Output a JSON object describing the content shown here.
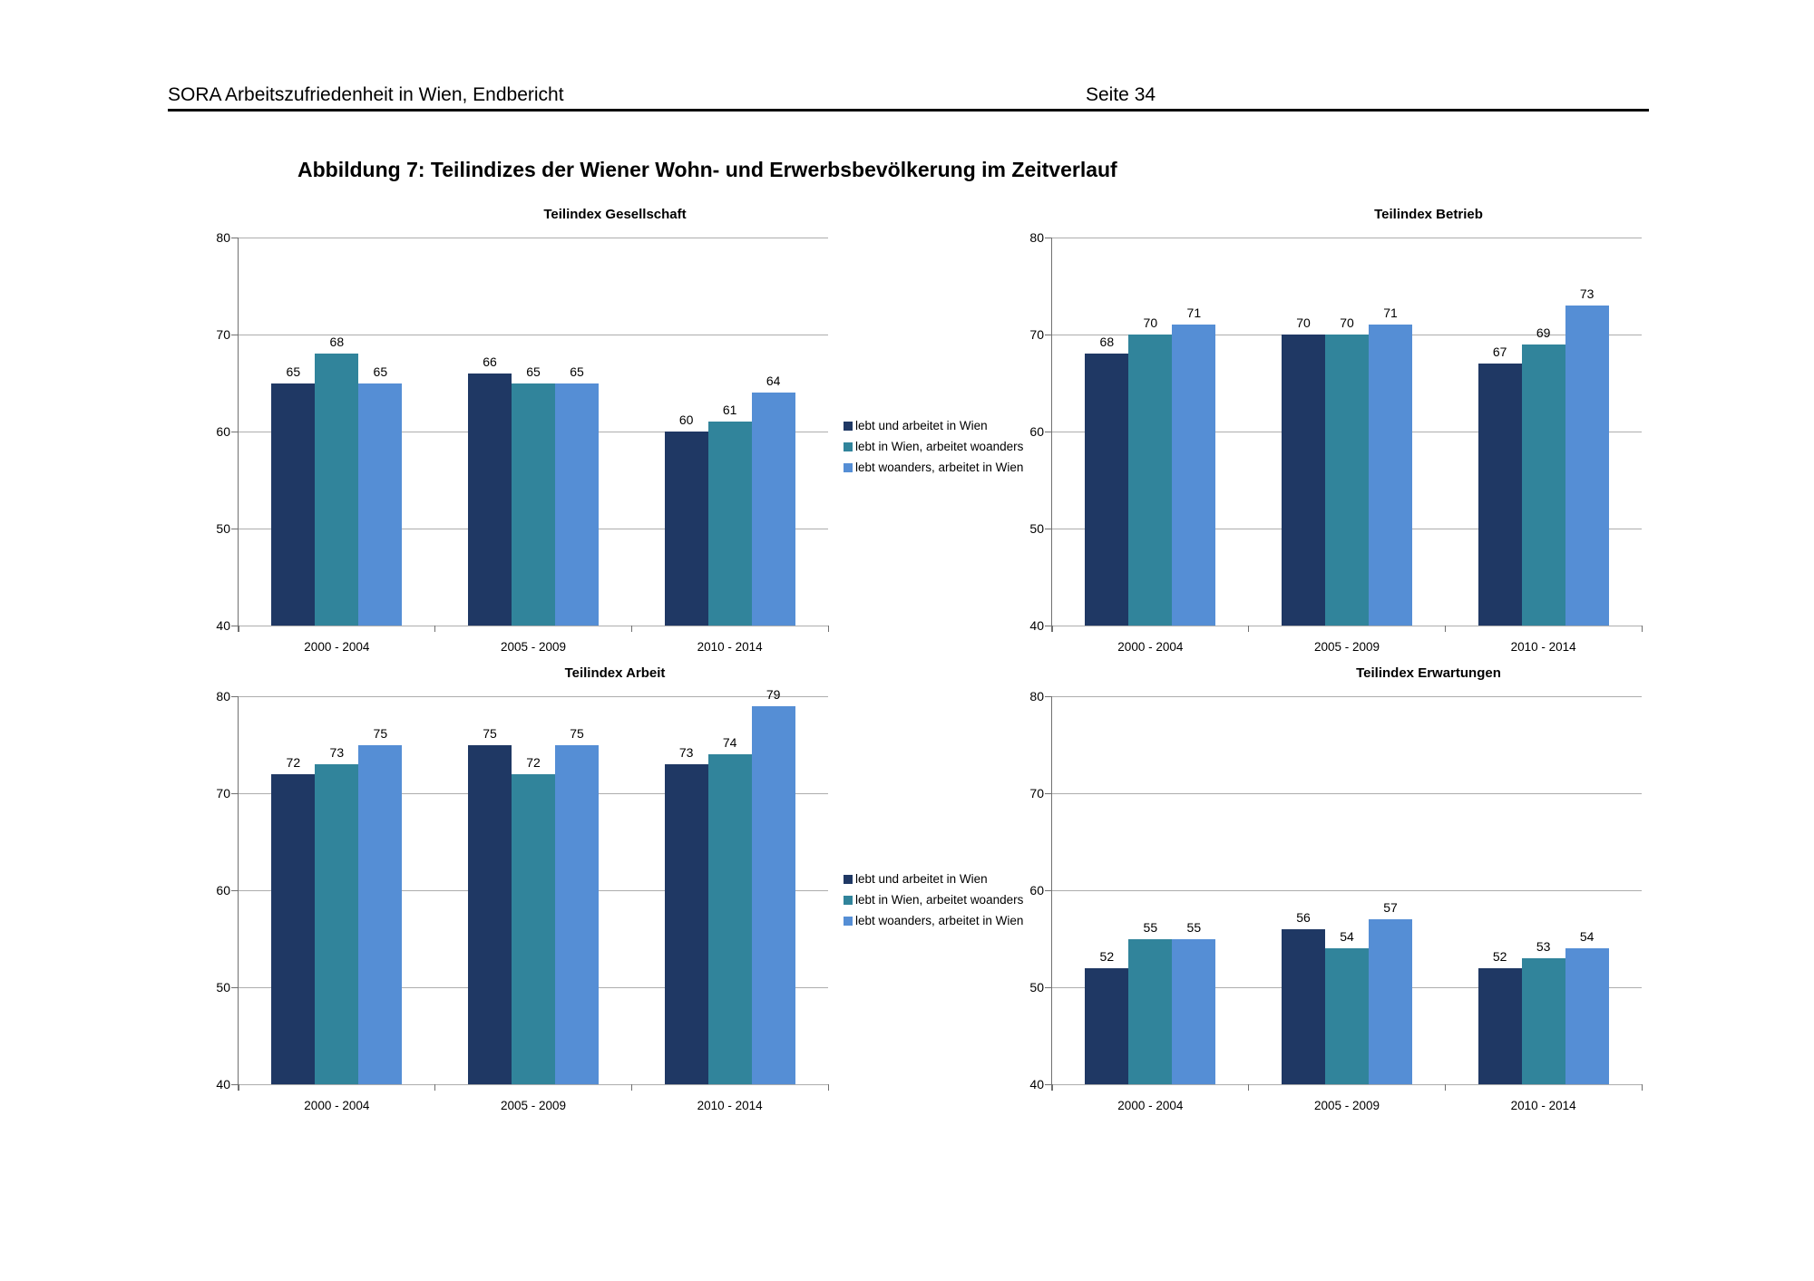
{
  "page": {
    "header_left": "SORA Arbeitszufriedenheit in Wien, Endbericht",
    "header_right": "Seite 34",
    "figure_title": "Abbildung 7: Teilindizes der Wiener Wohn- und Erwerbsbevölkerung im Zeitverlauf"
  },
  "colors": {
    "series": [
      "#1F3864",
      "#31849B",
      "#558ED5"
    ],
    "gridline": "#ADADAD",
    "axis": "#707070",
    "text": "#000000"
  },
  "legend": {
    "items": [
      "lebt und arbeitet in Wien",
      "lebt in Wien, arbeitet woanders",
      "lebt woanders, arbeitet in Wien"
    ]
  },
  "chart_data": [
    {
      "type": "bar",
      "title": "Teilindex Gesellschaft",
      "categories": [
        "2000 - 2004",
        "2005 - 2009",
        "2010 - 2014"
      ],
      "series": [
        {
          "name": "lebt und arbeitet in Wien",
          "values": [
            65,
            66,
            60
          ]
        },
        {
          "name": "lebt in Wien, arbeitet woanders",
          "values": [
            68,
            65,
            61
          ]
        },
        {
          "name": "lebt woanders, arbeitet in Wien",
          "values": [
            65,
            65,
            64
          ]
        }
      ],
      "ylim": [
        40,
        80
      ],
      "yticks": [
        80,
        70,
        60,
        50,
        40
      ],
      "grid": true,
      "legend_position": "right"
    },
    {
      "type": "bar",
      "title": "Teilindex Betrieb",
      "categories": [
        "2000 - 2004",
        "2005 - 2009",
        "2010 - 2014"
      ],
      "series": [
        {
          "name": "lebt und arbeitet in Wien",
          "values": [
            68,
            70,
            67
          ]
        },
        {
          "name": "lebt in Wien, arbeitet woanders",
          "values": [
            70,
            70,
            69
          ]
        },
        {
          "name": "lebt woanders, arbeitet in Wien",
          "values": [
            71,
            71,
            73
          ]
        }
      ],
      "ylim": [
        40,
        80
      ],
      "yticks": [
        80,
        70,
        60,
        50,
        40
      ],
      "grid": true,
      "legend_position": "none"
    },
    {
      "type": "bar",
      "title": "Teilindex Arbeit",
      "categories": [
        "2000 - 2004",
        "2005 - 2009",
        "2010 - 2014"
      ],
      "series": [
        {
          "name": "lebt und arbeitet in Wien",
          "values": [
            72,
            75,
            73
          ]
        },
        {
          "name": "lebt in Wien, arbeitet woanders",
          "values": [
            73,
            72,
            74
          ]
        },
        {
          "name": "lebt woanders, arbeitet in Wien",
          "values": [
            75,
            75,
            79
          ]
        }
      ],
      "ylim": [
        40,
        80
      ],
      "yticks": [
        80,
        70,
        60,
        50,
        40
      ],
      "grid": true,
      "legend_position": "right"
    },
    {
      "type": "bar",
      "title": "Teilindex Erwartungen",
      "categories": [
        "2000 - 2004",
        "2005 - 2009",
        "2010 - 2014"
      ],
      "series": [
        {
          "name": "lebt und arbeitet in Wien",
          "values": [
            52,
            56,
            52
          ]
        },
        {
          "name": "lebt in Wien, arbeitet woanders",
          "values": [
            55,
            54,
            53
          ]
        },
        {
          "name": "lebt woanders, arbeitet in Wien",
          "values": [
            55,
            57,
            54
          ]
        }
      ],
      "ylim": [
        40,
        80
      ],
      "yticks": [
        80,
        70,
        60,
        50,
        40
      ],
      "grid": true,
      "legend_position": "none"
    }
  ]
}
